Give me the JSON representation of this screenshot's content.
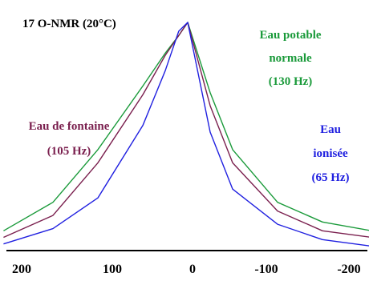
{
  "chart_data": {
    "type": "line",
    "title": "17 O-NMR (20°C)",
    "xlabel": "",
    "ylabel": "",
    "xlim": [
      200,
      -200
    ],
    "ylim": [
      0,
      1
    ],
    "x_reversed": true,
    "x_ticks": [
      "200",
      "100",
      "0",
      "-100",
      "-200"
    ],
    "x_tick_values": [
      200,
      100,
      0,
      -100,
      -200
    ],
    "grid": false,
    "legend": "none",
    "series": [
      {
        "name": "Eau potable normale",
        "label_lines": [
          "Eau potable",
          "normale",
          "(130 Hz)"
        ],
        "linewidth_hz": 130,
        "color": "#1a9a3a",
        "x": [
          -205,
          -150,
          -100,
          -50,
          -25,
          0,
          10,
          25,
          50,
          100,
          150,
          205
        ],
        "y": [
          0.05,
          0.09,
          0.18,
          0.42,
          0.68,
          1.0,
          0.94,
          0.86,
          0.71,
          0.42,
          0.18,
          0.05
        ]
      },
      {
        "name": "Eau de fontaine",
        "label_lines": [
          "Eau de fontaine",
          "(105 Hz)"
        ],
        "linewidth_hz": 105,
        "color": "#7a1f4e",
        "x": [
          -205,
          -150,
          -100,
          -50,
          -25,
          0,
          10,
          25,
          50,
          100,
          150,
          205
        ],
        "y": [
          0.02,
          0.05,
          0.14,
          0.36,
          0.62,
          1.0,
          0.94,
          0.85,
          0.67,
          0.36,
          0.12,
          0.02
        ]
      },
      {
        "name": "Eau ionisée",
        "label_lines": [
          "Eau",
          "ionisée",
          "(65 Hz)"
        ],
        "linewidth_hz": 65,
        "color": "#2020e0",
        "x": [
          -205,
          -150,
          -100,
          -50,
          -25,
          0,
          10,
          25,
          50,
          100,
          150,
          205
        ],
        "y": [
          -0.02,
          0.01,
          0.08,
          0.24,
          0.5,
          1.0,
          0.96,
          0.78,
          0.53,
          0.2,
          0.06,
          -0.01
        ]
      }
    ]
  }
}
